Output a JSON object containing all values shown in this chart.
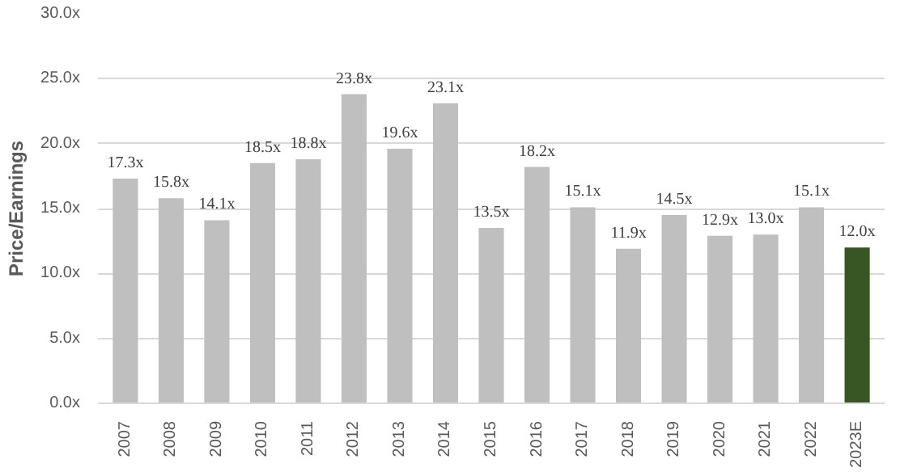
{
  "chart_data": {
    "type": "bar",
    "ylabel": "Price/Earnings",
    "categories": [
      "2007",
      "2008",
      "2009",
      "2010",
      "2011",
      "2012",
      "2013",
      "2014",
      "2015",
      "2016",
      "2017",
      "2018",
      "2019",
      "2020",
      "2021",
      "2022",
      "2023E"
    ],
    "values": [
      17.3,
      15.8,
      14.1,
      18.5,
      18.8,
      23.8,
      19.6,
      23.1,
      13.5,
      18.2,
      15.1,
      11.9,
      14.5,
      12.9,
      13.0,
      15.1,
      12.0
    ],
    "colors": [
      "#bfbfbf",
      "#bfbfbf",
      "#bfbfbf",
      "#bfbfbf",
      "#bfbfbf",
      "#bfbfbf",
      "#bfbfbf",
      "#bfbfbf",
      "#bfbfbf",
      "#bfbfbf",
      "#bfbfbf",
      "#bfbfbf",
      "#bfbfbf",
      "#bfbfbf",
      "#bfbfbf",
      "#bfbfbf",
      "#375623"
    ],
    "value_labels": [
      "17.3x",
      "15.8x",
      "14.1x",
      "18.5x",
      "18.8x",
      "23.8x",
      "19.6x",
      "23.1x",
      "13.5x",
      "18.2x",
      "15.1x",
      "11.9x",
      "14.5x",
      "12.9x",
      "13.0x",
      "15.1x",
      "12.0x"
    ],
    "ylim": [
      0,
      30
    ],
    "yticks": [
      {
        "value": 0,
        "label": "0.0x"
      },
      {
        "value": 5,
        "label": "5.0x"
      },
      {
        "value": 10,
        "label": "10.0x"
      },
      {
        "value": 15,
        "label": "15.0x"
      },
      {
        "value": 20,
        "label": "20.0x"
      },
      {
        "value": 25,
        "label": "25.0x"
      },
      {
        "value": 30,
        "label": "30.0x"
      }
    ],
    "grid": "y"
  }
}
